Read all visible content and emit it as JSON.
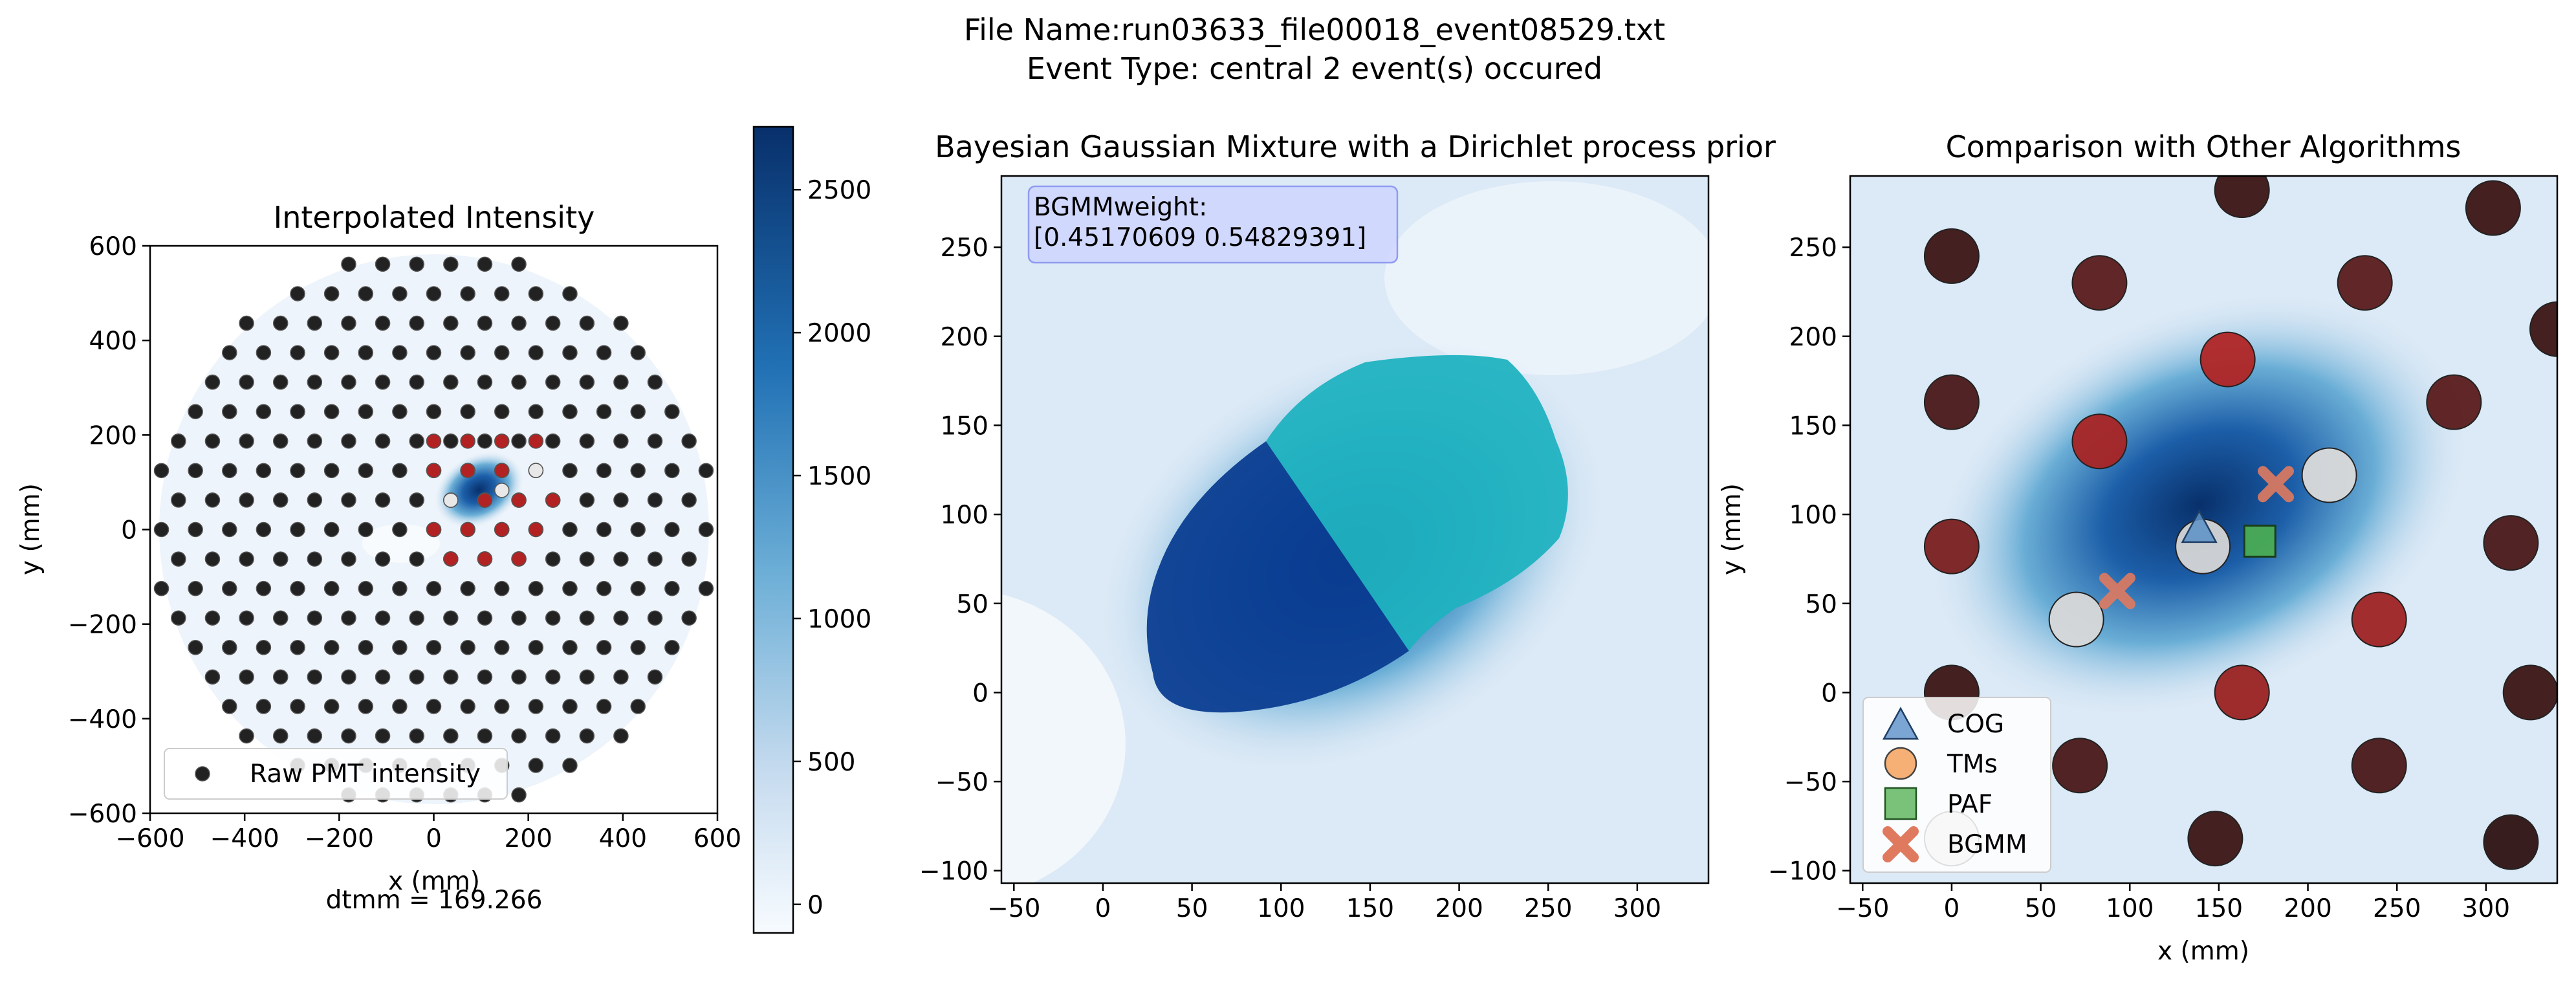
{
  "figure": {
    "title_line1": "File Name:run03633_file00018_event08529.txt",
    "title_line2": "Event Type: central    2 event(s) occured"
  },
  "chart_data": [
    {
      "type": "scatter",
      "title": "Interpolated Intensity",
      "xlabel": "x (mm)",
      "ylabel": "y (mm)",
      "xlim": [
        -600,
        600
      ],
      "ylim": [
        -600,
        600
      ],
      "xticks": [
        -600,
        -400,
        -200,
        0,
        200,
        400,
        600
      ],
      "yticks": [
        -600,
        -400,
        -200,
        0,
        200,
        400,
        600
      ],
      "annotation": "dtmm = 169.266",
      "legend": {
        "placement": "lower-left",
        "entries": [
          "Raw PMT intensity"
        ]
      },
      "background": "interpolated intensity heatmap (Blues colormap)",
      "pmt_grid": {
        "pitch_mm": 72,
        "radius_mm": 590,
        "marker_color": "#222222"
      },
      "highlighted_points": [
        {
          "x": 0,
          "y": 0,
          "color": "#b22222"
        },
        {
          "x": 72,
          "y": 0,
          "color": "#b22222"
        },
        {
          "x": 144,
          "y": 0,
          "color": "#b22222"
        },
        {
          "x": 216,
          "y": 0,
          "color": "#b22222"
        },
        {
          "x": 36,
          "y": 62,
          "color": "#b22222"
        },
        {
          "x": 108,
          "y": 62,
          "color": "#b22222"
        },
        {
          "x": 180,
          "y": 62,
          "color": "#b22222"
        },
        {
          "x": 252,
          "y": 62,
          "color": "#b22222"
        },
        {
          "x": 72,
          "y": 125,
          "color": "#b22222"
        },
        {
          "x": 144,
          "y": 125,
          "color": "#b22222"
        },
        {
          "x": 216,
          "y": 125,
          "color": "#b22222"
        },
        {
          "x": 0,
          "y": 125,
          "color": "#b22222"
        },
        {
          "x": 0,
          "y": 187,
          "color": "#b22222"
        },
        {
          "x": 72,
          "y": 187,
          "color": "#b22222"
        },
        {
          "x": 144,
          "y": 187,
          "color": "#b22222"
        },
        {
          "x": 216,
          "y": 187,
          "color": "#b22222"
        },
        {
          "x": 36,
          "y": -62,
          "color": "#b22222"
        },
        {
          "x": 108,
          "y": -62,
          "color": "#b22222"
        },
        {
          "x": 180,
          "y": -62,
          "color": "#b22222"
        },
        {
          "x": 36,
          "y": 62,
          "color": "#e8e8e8"
        },
        {
          "x": 144,
          "y": 83,
          "color": "#e8e8e8"
        },
        {
          "x": 216,
          "y": 125,
          "color": "#e8e8e8"
        }
      ]
    },
    {
      "type": "colorbar",
      "ticks": [
        0,
        500,
        1000,
        1500,
        2000,
        2500
      ],
      "range": [
        -100,
        2720
      ],
      "colormap": "Blues"
    },
    {
      "type": "heatmap",
      "title": "Bayesian Gaussian Mixture with a Dirichlet process prior",
      "xlim": [
        -57,
        340
      ],
      "ylim": [
        -107,
        290
      ],
      "xticks": [
        -50,
        0,
        50,
        100,
        150,
        200,
        250,
        300
      ],
      "yticks": [
        -100,
        -50,
        0,
        50,
        100,
        150,
        200,
        250
      ],
      "annotation_line1": "BGMMweight:",
      "annotation_line2": "[0.45170609 0.54829391]",
      "components": [
        {
          "color": "#0b3d91",
          "weight": 0.45170609
        },
        {
          "color": "#20b2c0",
          "weight": 0.54829391
        }
      ]
    },
    {
      "type": "scatter",
      "title": "Comparison with Other Algorithms",
      "xlabel": "x (mm)",
      "ylabel": "y (mm)",
      "xlim": [
        -57,
        340
      ],
      "ylim": [
        -107,
        290
      ],
      "xticks": [
        -50,
        0,
        50,
        100,
        150,
        200,
        250,
        300
      ],
      "yticks": [
        -100,
        -50,
        0,
        50,
        100,
        150,
        200,
        250
      ],
      "legend": {
        "placement": "lower-left",
        "entries": [
          "COG",
          "TMs",
          "PAF",
          "BGMM"
        ]
      },
      "pmts": [
        {
          "x": 0,
          "y": 245,
          "color": "#3b1515"
        },
        {
          "x": 0,
          "y": 163,
          "color": "#4a1818"
        },
        {
          "x": 0,
          "y": 82,
          "color": "#7a1f1f"
        },
        {
          "x": 0,
          "y": 0,
          "color": "#3b1515"
        },
        {
          "x": 0,
          "y": -82,
          "color": "#cfcfcf"
        },
        {
          "x": 83,
          "y": 230,
          "color": "#5a1b1b"
        },
        {
          "x": 83,
          "y": 141,
          "color": "#a82424"
        },
        {
          "x": 70,
          "y": 41,
          "color": "#d8d8d8"
        },
        {
          "x": 72,
          "y": -41,
          "color": "#4a1818"
        },
        {
          "x": 163,
          "y": 282,
          "color": "#3b1515"
        },
        {
          "x": 155,
          "y": 187,
          "color": "#b02525"
        },
        {
          "x": 141,
          "y": 82,
          "color": "#d5d5d5"
        },
        {
          "x": 163,
          "y": 0,
          "color": "#9a2222"
        },
        {
          "x": 148,
          "y": -82,
          "color": "#3b1515"
        },
        {
          "x": 212,
          "y": 122,
          "color": "#dadada"
        },
        {
          "x": 232,
          "y": 230,
          "color": "#5a1b1b"
        },
        {
          "x": 240,
          "y": 41,
          "color": "#9e2323"
        },
        {
          "x": 240,
          "y": -41,
          "color": "#4a1818"
        },
        {
          "x": 282,
          "y": 163,
          "color": "#5a1b1b"
        },
        {
          "x": 304,
          "y": 272,
          "color": "#3b1515"
        },
        {
          "x": 314,
          "y": 84,
          "color": "#4a1818"
        },
        {
          "x": 314,
          "y": -84,
          "color": "#2e1212"
        },
        {
          "x": 325,
          "y": 0,
          "color": "#3b1515"
        },
        {
          "x": 340,
          "y": 204,
          "color": "#3b1515"
        }
      ],
      "cog": {
        "x": 139,
        "y": 91,
        "color": "#5b8fc7"
      },
      "paf": {
        "x": 173,
        "y": 85,
        "color": "#4caf50"
      },
      "bgmm": [
        {
          "x": 93,
          "y": 57,
          "color": "#e07a5f"
        },
        {
          "x": 182,
          "y": 117,
          "color": "#e07a5f"
        }
      ]
    }
  ]
}
